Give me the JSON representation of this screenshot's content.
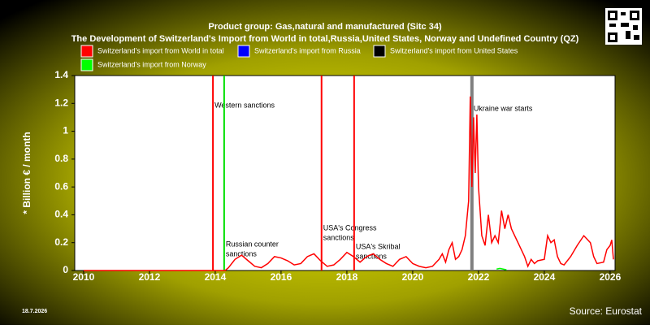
{
  "chart_data": {
    "type": "line",
    "title": "Product group: Gas,natural and manufactured (Sitc 34)",
    "subtitle": "The Development of Switzerland's Import from World in total,Russia,United States, Norway and Undefined Country (QZ)",
    "y_label": "* Billion € / month",
    "date": "18.7.2026",
    "source": "Source: Eurostat",
    "xlim": [
      2009.73,
      2026.15
    ],
    "xticks": [
      2010,
      2012,
      2014,
      2016,
      2018,
      2020,
      2022,
      2024,
      2026
    ],
    "ylim": [
      0,
      1.4
    ],
    "yticks": [
      0,
      0.2,
      0.4,
      0.6,
      0.8,
      1,
      1.2,
      1.4
    ],
    "grid": false,
    "series": [
      {
        "name": "Switzerland's import from World in total",
        "color": "#ff0000",
        "x": [
          2010,
          2011,
          2012,
          2013,
          2014,
          2014.3,
          2014.4,
          2014.6,
          2014.8,
          2015.0,
          2015.2,
          2015.4,
          2015.6,
          2015.8,
          2016.0,
          2016.2,
          2016.4,
          2016.6,
          2016.8,
          2017.0,
          2017.2,
          2017.4,
          2017.6,
          2017.8,
          2018.0,
          2018.2,
          2018.4,
          2018.6,
          2018.8,
          2019.0,
          2019.2,
          2019.4,
          2019.6,
          2019.8,
          2020.0,
          2020.2,
          2020.4,
          2020.6,
          2020.8,
          2020.9,
          2021.0,
          2021.1,
          2021.2,
          2021.3,
          2021.4,
          2021.5,
          2021.6,
          2021.7,
          2021.75,
          2021.8,
          2021.85,
          2021.9,
          2021.95,
          2022.0,
          2022.1,
          2022.2,
          2022.3,
          2022.4,
          2022.5,
          2022.6,
          2022.7,
          2022.8,
          2022.9,
          2023.0,
          2023.2,
          2023.4,
          2023.5,
          2023.6,
          2023.7,
          2023.8,
          2024.0,
          2024.1,
          2024.2,
          2024.3,
          2024.4,
          2024.5,
          2024.6,
          2024.8,
          2025.0,
          2025.2,
          2025.4,
          2025.5,
          2025.6,
          2025.8,
          2025.9,
          2026.0,
          2026.05,
          2026.1
        ],
        "values": [
          0,
          0,
          0,
          0,
          0,
          0,
          0.02,
          0.08,
          0.11,
          0.07,
          0.03,
          0.02,
          0.05,
          0.1,
          0.09,
          0.07,
          0.04,
          0.05,
          0.1,
          0.12,
          0.07,
          0.03,
          0.04,
          0.08,
          0.13,
          0.1,
          0.06,
          0.1,
          0.12,
          0.08,
          0.05,
          0.03,
          0.08,
          0.1,
          0.05,
          0.03,
          0.02,
          0.03,
          0.08,
          0.12,
          0.06,
          0.15,
          0.2,
          0.08,
          0.1,
          0.15,
          0.25,
          0.5,
          1.25,
          0.6,
          1.1,
          0.7,
          1.12,
          0.6,
          0.25,
          0.18,
          0.4,
          0.2,
          0.25,
          0.2,
          0.43,
          0.3,
          0.4,
          0.3,
          0.2,
          0.1,
          0.03,
          0.08,
          0.05,
          0.07,
          0.08,
          0.25,
          0.2,
          0.22,
          0.1,
          0.05,
          0.04,
          0.1,
          0.18,
          0.25,
          0.2,
          0.1,
          0.05,
          0.06,
          0.15,
          0.18,
          0.22,
          0.08
        ]
      },
      {
        "name": "Switzerland's import from Russia",
        "color": "#0000ff",
        "x": [],
        "values": []
      },
      {
        "name": "Switzerland's import from United States",
        "color": "#000000",
        "x": [],
        "values": []
      },
      {
        "name": "Switzerland's import from Norway",
        "color": "#00ff00",
        "x": [
          2022.55,
          2022.65,
          2022.75,
          2022.85
        ],
        "values": [
          0.01,
          0.015,
          0.01,
          0.005
        ]
      }
    ],
    "annotations": [
      {
        "x": 2013.93,
        "color": "#ff0000",
        "label": [
          "Western sanctions"
        ]
      },
      {
        "x": 2014.27,
        "color": "#00e000",
        "label": [
          "Russian counter",
          "sanctions"
        ]
      },
      {
        "x": 2017.23,
        "color": "#ff0000",
        "label": [
          "USA's Congress",
          "sanctions"
        ]
      },
      {
        "x": 2018.22,
        "color": "#ff0000",
        "label": [
          "USA's Skribal",
          "sanctions"
        ]
      },
      {
        "x": 2021.8,
        "color": "#808080",
        "label": [
          "Ukraine war starts"
        ]
      }
    ]
  }
}
